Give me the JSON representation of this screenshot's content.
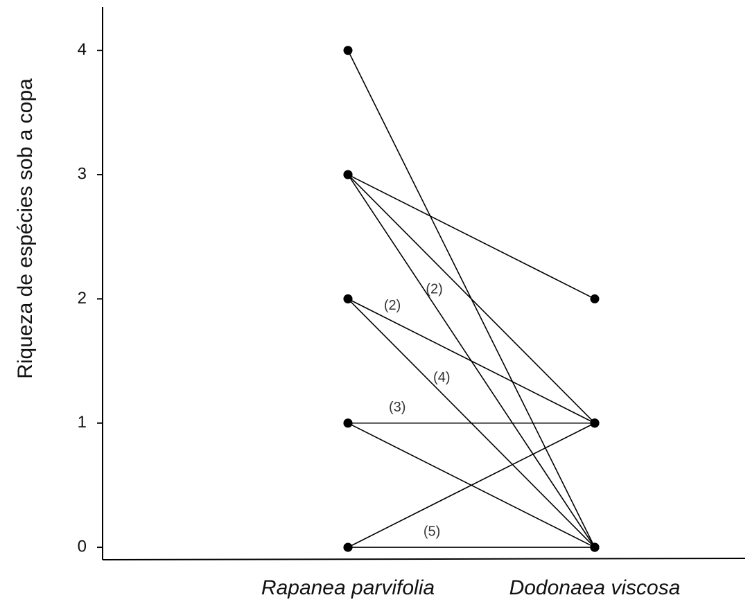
{
  "chart_data": {
    "type": "slope",
    "y_label": "Riqueza de espécies sob a copa",
    "categories": [
      "Rapanea parvifolia",
      "Dodonaea viscosa"
    ],
    "ylim": [
      -0.1,
      4.35
    ],
    "yticks": [
      0,
      1,
      2,
      3,
      4
    ],
    "color": "#000000",
    "series": [
      {
        "values": [
          4,
          0
        ]
      },
      {
        "values": [
          3,
          2
        ]
      },
      {
        "values": [
          3,
          1
        ]
      },
      {
        "values": [
          3,
          0
        ],
        "label": "(2)"
      },
      {
        "values": [
          2,
          1
        ],
        "label": "(2)"
      },
      {
        "values": [
          2,
          0
        ],
        "label": "(4)"
      },
      {
        "values": [
          1,
          1
        ],
        "label": "(3)"
      },
      {
        "values": [
          1,
          0
        ]
      },
      {
        "values": [
          0,
          1
        ]
      },
      {
        "values": [
          0,
          0
        ],
        "label": "(5)"
      }
    ]
  }
}
